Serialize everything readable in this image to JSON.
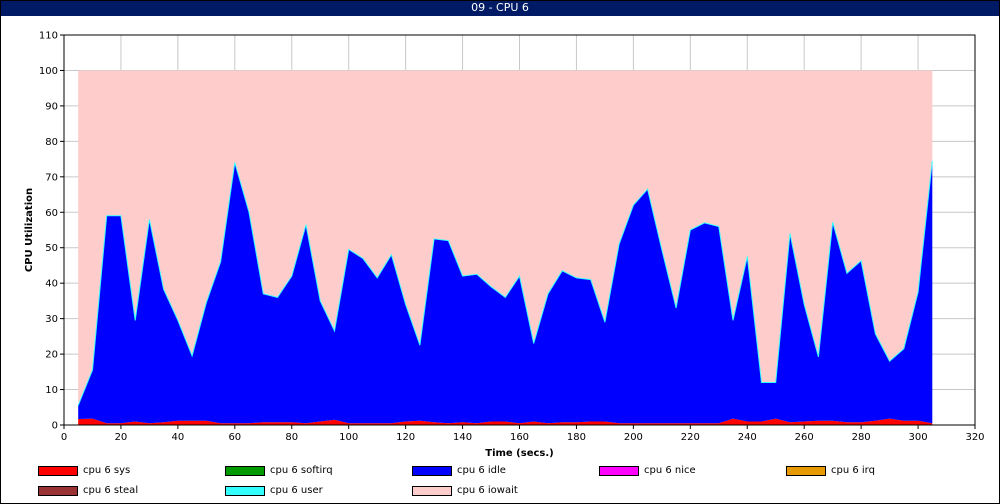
{
  "window": {
    "title": "09 - CPU 6"
  },
  "chart_data": {
    "type": "area",
    "title": "",
    "xlabel": "Time (secs.)",
    "ylabel": "CPU Utilization",
    "xlim": [
      0,
      320
    ],
    "ylim": [
      0,
      110
    ],
    "xticks": [
      0,
      20,
      40,
      60,
      80,
      100,
      120,
      140,
      160,
      180,
      200,
      220,
      240,
      260,
      280,
      300,
      320
    ],
    "yticks": [
      0,
      10,
      20,
      30,
      40,
      50,
      60,
      70,
      80,
      90,
      100,
      110
    ],
    "grid": true,
    "stacked": true,
    "legend_position": "bottom",
    "x": [
      5,
      10,
      15,
      20,
      25,
      30,
      35,
      40,
      45,
      50,
      55,
      60,
      65,
      70,
      75,
      80,
      85,
      90,
      95,
      100,
      105,
      110,
      115,
      120,
      125,
      130,
      135,
      140,
      145,
      150,
      155,
      160,
      165,
      170,
      175,
      180,
      185,
      190,
      195,
      200,
      205,
      210,
      215,
      220,
      225,
      230,
      235,
      240,
      245,
      250,
      255,
      260,
      265,
      270,
      275,
      280,
      285,
      290,
      295,
      300,
      305
    ],
    "series": [
      {
        "name": "cpu 6 sys",
        "color": "#ff0000",
        "values": [
          1.7,
          1.8,
          0.5,
          0.5,
          1.0,
          0.5,
          0.8,
          1.2,
          1.2,
          1.2,
          0.5,
          0.5,
          0.5,
          0.8,
          0.8,
          0.8,
          0.5,
          1.0,
          1.5,
          0.5,
          0.5,
          0.5,
          0.5,
          1.0,
          1.2,
          0.8,
          0.5,
          0.8,
          0.5,
          1.0,
          1.0,
          0.5,
          1.0,
          0.5,
          0.8,
          0.8,
          1.0,
          1.0,
          0.5,
          0.5,
          0.5,
          0.5,
          0.5,
          0.5,
          0.5,
          0.5,
          1.8,
          1.0,
          1.0,
          1.8,
          0.8,
          1.0,
          1.2,
          1.2,
          0.8,
          0.8,
          1.2,
          1.8,
          1.2,
          1.2,
          0.5
        ]
      },
      {
        "name": "cpu 6 softirq",
        "color": "#009900",
        "values": [
          0,
          0,
          0,
          0,
          0,
          0,
          0,
          0,
          0,
          0,
          0,
          0,
          0,
          0,
          0,
          0,
          0,
          0,
          0,
          0,
          0,
          0,
          0,
          0,
          0,
          0,
          0,
          0,
          0,
          0,
          0,
          0,
          0,
          0,
          0,
          0,
          0,
          0,
          0,
          0,
          0,
          0,
          0,
          0,
          0,
          0,
          0,
          0,
          0,
          0,
          0,
          0,
          0,
          0,
          0,
          0,
          0,
          0,
          0,
          0,
          0
        ]
      },
      {
        "name": "cpu 6 idle",
        "color": "#0000ff",
        "values": [
          3.8,
          13.7,
          58.5,
          58.5,
          28.5,
          57.5,
          37.5,
          28.3,
          18.3,
          33.3,
          45.5,
          73.5,
          59.5,
          36.2,
          35.2,
          41.2,
          56.0,
          34.0,
          25.0,
          49.0,
          46.5,
          41.0,
          47.5,
          33.0,
          21.3,
          51.7,
          51.5,
          41.2,
          42.0,
          38.0,
          35.0,
          41.5,
          22.0,
          36.5,
          42.7,
          40.7,
          40.0,
          28.0,
          50.5,
          61.5,
          66.0,
          49.0,
          32.5,
          54.5,
          56.5,
          55.5,
          27.7,
          46.5,
          11.0,
          10.2,
          53.2,
          33.0,
          18.0,
          56.0,
          42.0,
          45.5,
          24.5,
          16.2,
          20.3,
          36.3,
          74.0
        ]
      },
      {
        "name": "cpu 6 nice",
        "color": "#ff00ff",
        "values": [
          0,
          0,
          0,
          0,
          0,
          0,
          0,
          0,
          0,
          0,
          0,
          0,
          0,
          0,
          0,
          0,
          0,
          0,
          0,
          0,
          0,
          0,
          0,
          0,
          0,
          0,
          0,
          0,
          0,
          0,
          0,
          0,
          0,
          0,
          0,
          0,
          0,
          0,
          0,
          0,
          0,
          0,
          0,
          0,
          0,
          0,
          0,
          0,
          0,
          0,
          0,
          0,
          0,
          0,
          0,
          0,
          0,
          0,
          0,
          0,
          0
        ]
      },
      {
        "name": "cpu 6 irq",
        "color": "#e69900",
        "values": [
          0,
          0,
          0,
          0,
          0,
          0,
          0,
          0,
          0,
          0,
          0,
          0,
          0,
          0,
          0,
          0,
          0,
          0,
          0,
          0,
          0,
          0,
          0,
          0,
          0,
          0,
          0,
          0,
          0,
          0,
          0,
          0,
          0,
          0,
          0,
          0,
          0,
          0,
          0,
          0,
          0,
          0,
          0,
          0,
          0,
          0,
          0,
          0,
          0,
          0,
          0,
          0,
          0,
          0,
          0,
          0,
          0,
          0,
          0,
          0,
          0
        ]
      },
      {
        "name": "cpu 6 steal",
        "color": "#993333",
        "values": [
          0,
          0,
          0,
          0,
          0,
          0,
          0,
          0,
          0,
          0,
          0,
          0,
          0,
          0,
          0,
          0,
          0,
          0,
          0,
          0,
          0,
          0,
          0,
          0,
          0,
          0,
          0,
          0,
          0,
          0,
          0,
          0,
          0,
          0,
          0,
          0,
          0,
          0,
          0,
          0,
          0,
          0,
          0,
          0,
          0,
          0,
          0,
          0,
          0,
          0,
          0,
          0,
          0,
          0,
          0,
          0,
          0,
          0,
          0,
          0,
          0
        ]
      },
      {
        "name": "cpu 6 user",
        "color": "#33ffff",
        "values": [
          0,
          0,
          0,
          0,
          0,
          0,
          0,
          0,
          0,
          0,
          0,
          0,
          0,
          0,
          0,
          0,
          0,
          0,
          0,
          0,
          0,
          0,
          0,
          0,
          0,
          0,
          0,
          0,
          0,
          0,
          0,
          0,
          0,
          0,
          0,
          0,
          0,
          0,
          0,
          0,
          0,
          0,
          0,
          0,
          0,
          0,
          0,
          0,
          0,
          0,
          0,
          0,
          0,
          0,
          0,
          0,
          0,
          0,
          0,
          0,
          0
        ]
      },
      {
        "name": "cpu 6 iowait",
        "color": "#ffcccc",
        "values": [
          94.5,
          84.5,
          41.0,
          41.0,
          70.5,
          42.0,
          61.7,
          70.5,
          80.5,
          65.5,
          54.0,
          26.0,
          40.0,
          63.0,
          64.0,
          58.0,
          43.5,
          65.0,
          73.5,
          50.5,
          53.0,
          58.5,
          52.0,
          66.0,
          77.5,
          47.5,
          48.0,
          58.0,
          57.5,
          61.0,
          64.0,
          58.0,
          77.0,
          63.0,
          56.5,
          58.5,
          59.0,
          71.0,
          49.0,
          38.0,
          33.5,
          50.5,
          67.0,
          45.0,
          43.0,
          44.0,
          70.5,
          52.5,
          88.0,
          88.0,
          46.0,
          66.0,
          80.8,
          42.8,
          57.2,
          53.7,
          74.3,
          82.0,
          78.5,
          62.5,
          25.5
        ]
      }
    ]
  },
  "legend": {
    "items": [
      {
        "label": "cpu 6 sys",
        "color": "#ff0000"
      },
      {
        "label": "cpu 6 softirq",
        "color": "#009900"
      },
      {
        "label": "cpu 6 idle",
        "color": "#0000ff"
      },
      {
        "label": "cpu 6 nice",
        "color": "#ff00ff"
      },
      {
        "label": "cpu 6 irq",
        "color": "#e69900"
      },
      {
        "label": "cpu 6 steal",
        "color": "#993333"
      },
      {
        "label": "cpu 6 user",
        "color": "#33ffff"
      },
      {
        "label": "cpu 6 iowait",
        "color": "#ffcccc"
      }
    ]
  }
}
